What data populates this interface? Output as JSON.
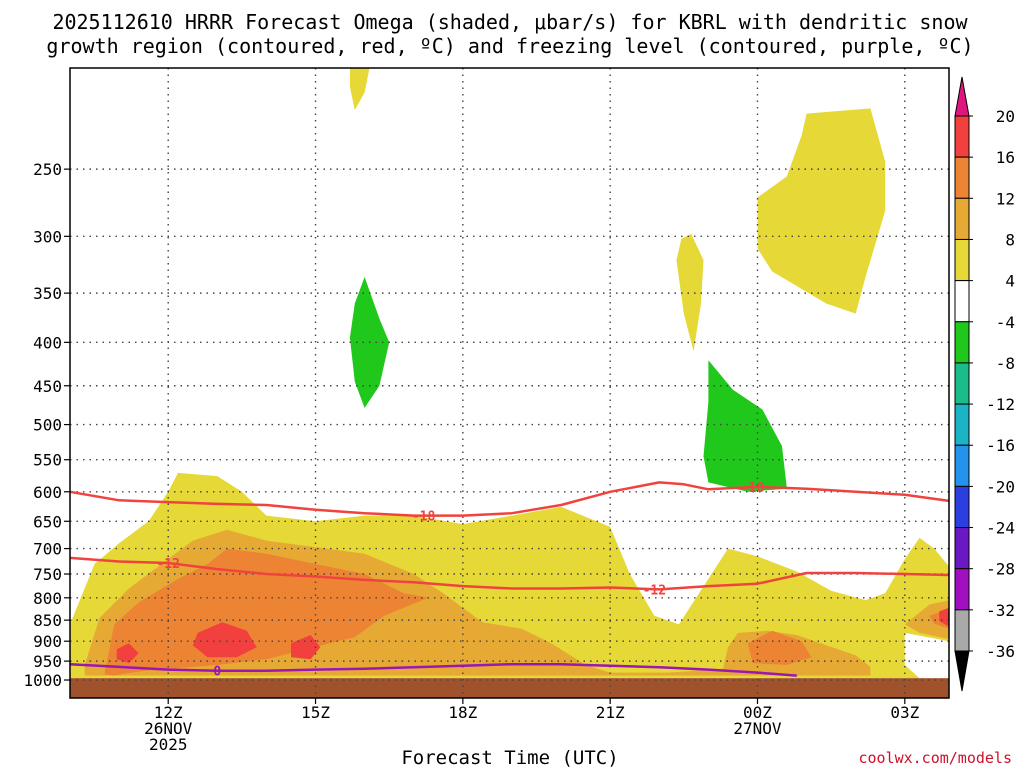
{
  "title": {
    "line1": "2025112610 HRRR Forecast Omega (shaded, μbar/s) for KBRL with dendritic snow",
    "line2": "growth region (contoured, red, ºC) and freezing level (contoured, purple, ºC)"
  },
  "credit": "coolwx.com/models",
  "chart_data": {
    "type": "heatmap",
    "title": "2025112610 HRRR Forecast Omega (shaded, μbar/s) for KBRL with dendritic snow growth region (contoured, red, ºC) and freezing level (contoured, purple, ºC)",
    "xlabel": "Forecast Time (UTC)",
    "ylabel": "",
    "x_range_hours_utc_26nov": [
      10,
      27.9
    ],
    "x_ticks": [
      {
        "hour": 12,
        "label": "12Z",
        "sub1": "26NOV",
        "sub2": "2025"
      },
      {
        "hour": 15,
        "label": "15Z",
        "sub1": "",
        "sub2": ""
      },
      {
        "hour": 18,
        "label": "18Z",
        "sub1": "",
        "sub2": ""
      },
      {
        "hour": 21,
        "label": "21Z",
        "sub1": "",
        "sub2": ""
      },
      {
        "hour": 24,
        "label": "00Z",
        "sub1": "27NOV",
        "sub2": ""
      },
      {
        "hour": 27,
        "label": "03Z",
        "sub1": "",
        "sub2": ""
      }
    ],
    "y_scale": "log",
    "y_range_hPa": [
      1050,
      190
    ],
    "y_ticks": [
      250,
      300,
      350,
      400,
      450,
      500,
      550,
      600,
      650,
      700,
      750,
      800,
      850,
      900,
      950,
      1000
    ],
    "grid": true,
    "colorbar": {
      "labels": [
        "20",
        "16",
        "12",
        "8",
        "4",
        "-4",
        "-8",
        "-12",
        "-16",
        "-20",
        "-24",
        "-28",
        "-32",
        "-36"
      ],
      "top_arrow_color": "#e0157e",
      "bottom_arrow_color": "#000000",
      "bands_top_to_bottom": [
        {
          "from": 16,
          "to": 20,
          "color": "#f2403e"
        },
        {
          "from": 12,
          "to": 16,
          "color": "#ec8434"
        },
        {
          "from": 8,
          "to": 12,
          "color": "#e6aa34"
        },
        {
          "from": 4,
          "to": 8,
          "color": "#e6d837"
        },
        {
          "from": -4,
          "to": 4,
          "color": "#ffffff"
        },
        {
          "from": -8,
          "to": -4,
          "color": "#1fc81b"
        },
        {
          "from": -12,
          "to": -8,
          "color": "#1abc8a"
        },
        {
          "from": -16,
          "to": -12,
          "color": "#1ab4c6"
        },
        {
          "from": -20,
          "to": -16,
          "color": "#2493ee"
        },
        {
          "from": -24,
          "to": -20,
          "color": "#2b3ee0"
        },
        {
          "from": -28,
          "to": -24,
          "color": "#6a17c4"
        },
        {
          "from": -32,
          "to": -28,
          "color": "#a10fc0"
        },
        {
          "from": -36,
          "to": -32,
          "color": "#a9a9a9"
        }
      ]
    },
    "ground": {
      "from_hPa": 995,
      "color": "#a0522d"
    },
    "regions": [
      {
        "name": "omega 4-8",
        "color": "#e6d837",
        "points": [
          [
            10.0,
            860
          ],
          [
            10.5,
            730
          ],
          [
            11.0,
            690
          ],
          [
            11.6,
            650
          ],
          [
            12.0,
            600
          ],
          [
            12.2,
            570
          ],
          [
            13.0,
            575
          ],
          [
            13.5,
            600
          ],
          [
            14.0,
            640
          ],
          [
            15.0,
            650
          ],
          [
            16.0,
            640
          ],
          [
            17.0,
            640
          ],
          [
            18.0,
            655
          ],
          [
            19.0,
            640
          ],
          [
            20.0,
            625
          ],
          [
            21.0,
            660
          ],
          [
            21.4,
            750
          ],
          [
            21.9,
            840
          ],
          [
            22.4,
            860
          ],
          [
            23.0,
            760
          ],
          [
            23.4,
            700
          ],
          [
            24.0,
            715
          ],
          [
            24.8,
            745
          ],
          [
            25.5,
            785
          ],
          [
            26.2,
            805
          ],
          [
            26.6,
            790
          ],
          [
            27.0,
            720
          ],
          [
            27.3,
            680
          ],
          [
            27.6,
            700
          ],
          [
            27.9,
            735
          ],
          [
            27.9,
            900
          ],
          [
            27.0,
            880
          ],
          [
            27.0,
            960
          ],
          [
            27.3,
            995
          ],
          [
            10.0,
            995
          ]
        ]
      },
      {
        "name": "omega 4-8",
        "color": "#e6d837",
        "points": [
          [
            15.7,
            190
          ],
          [
            16.1,
            190
          ],
          [
            16.0,
            203
          ],
          [
            15.8,
            213
          ],
          [
            15.7,
            200
          ]
        ]
      },
      {
        "name": "omega 4-8",
        "color": "#e6d837",
        "points": [
          [
            22.65,
            298
          ],
          [
            22.9,
            320
          ],
          [
            22.85,
            360
          ],
          [
            22.7,
            410
          ],
          [
            22.5,
            370
          ],
          [
            22.35,
            320
          ],
          [
            22.45,
            302
          ]
        ]
      },
      {
        "name": "omega 4-8",
        "color": "#e6d837",
        "points": [
          [
            24.0,
            270
          ],
          [
            24.6,
            255
          ],
          [
            24.9,
            228
          ],
          [
            25.0,
            215
          ],
          [
            26.3,
            212
          ],
          [
            26.6,
            245
          ],
          [
            26.6,
            280
          ],
          [
            26.2,
            335
          ],
          [
            26.0,
            370
          ],
          [
            25.4,
            360
          ],
          [
            24.3,
            330
          ],
          [
            24.0,
            310
          ]
        ]
      },
      {
        "name": "omega 8-12",
        "color": "#e6aa34",
        "points": [
          [
            10.3,
            960
          ],
          [
            10.6,
            845
          ],
          [
            11.2,
            780
          ],
          [
            12.0,
            720
          ],
          [
            12.5,
            685
          ],
          [
            13.2,
            665
          ],
          [
            14.0,
            685
          ],
          [
            14.8,
            695
          ],
          [
            16.0,
            710
          ],
          [
            17.0,
            750
          ],
          [
            17.6,
            790
          ],
          [
            18.4,
            855
          ],
          [
            19.2,
            870
          ],
          [
            19.8,
            905
          ],
          [
            20.5,
            960
          ],
          [
            21.0,
            980
          ],
          [
            22.2,
            980
          ],
          [
            23.3,
            970
          ],
          [
            23.4,
            915
          ],
          [
            23.6,
            880
          ],
          [
            24.2,
            875
          ],
          [
            24.8,
            885
          ],
          [
            25.4,
            910
          ],
          [
            26.0,
            935
          ],
          [
            26.3,
            965
          ],
          [
            26.3,
            988
          ],
          [
            10.3,
            988
          ]
        ]
      },
      {
        "name": "omega 8-12",
        "color": "#e6aa34",
        "points": [
          [
            27.0,
            860
          ],
          [
            27.5,
            815
          ],
          [
            27.9,
            805
          ],
          [
            27.9,
            895
          ],
          [
            27.3,
            880
          ]
        ]
      },
      {
        "name": "omega 12-16",
        "color": "#ec8434",
        "points": [
          [
            10.7,
            985
          ],
          [
            10.9,
            860
          ],
          [
            11.4,
            810
          ],
          [
            12.2,
            760
          ],
          [
            12.8,
            730
          ],
          [
            13.2,
            700
          ],
          [
            14.0,
            710
          ],
          [
            15.0,
            730
          ],
          [
            16.0,
            750
          ],
          [
            16.8,
            790
          ],
          [
            17.3,
            800
          ],
          [
            16.4,
            840
          ],
          [
            15.8,
            890
          ],
          [
            14.8,
            920
          ],
          [
            14.0,
            945
          ],
          [
            13.0,
            960
          ],
          [
            11.5,
            975
          ],
          [
            10.9,
            988
          ]
        ]
      },
      {
        "name": "omega 12-16",
        "color": "#ec8434",
        "points": [
          [
            23.8,
            905
          ],
          [
            24.3,
            875
          ],
          [
            24.9,
            900
          ],
          [
            25.1,
            940
          ],
          [
            24.6,
            960
          ],
          [
            23.9,
            955
          ]
        ]
      },
      {
        "name": "omega 12-16",
        "color": "#ec8434",
        "points": [
          [
            27.5,
            840
          ],
          [
            27.9,
            825
          ],
          [
            27.9,
            870
          ],
          [
            27.6,
            858
          ]
        ]
      },
      {
        "name": "omega 16-20",
        "color": "#f2403e",
        "points": [
          [
            12.6,
            880
          ],
          [
            13.1,
            855
          ],
          [
            13.6,
            875
          ],
          [
            13.8,
            915
          ],
          [
            13.4,
            940
          ],
          [
            12.8,
            940
          ],
          [
            12.5,
            910
          ]
        ]
      },
      {
        "name": "omega 16-20",
        "color": "#f2403e",
        "points": [
          [
            14.5,
            905
          ],
          [
            14.9,
            885
          ],
          [
            15.1,
            915
          ],
          [
            14.9,
            945
          ],
          [
            14.5,
            940
          ]
        ]
      },
      {
        "name": "omega 16-20",
        "color": "#f2403e",
        "points": [
          [
            10.95,
            920
          ],
          [
            11.2,
            905
          ],
          [
            11.4,
            930
          ],
          [
            11.2,
            955
          ],
          [
            10.95,
            945
          ]
        ]
      },
      {
        "name": "omega 16-20",
        "color": "#f2403e",
        "points": [
          [
            27.7,
            830
          ],
          [
            27.9,
            822
          ],
          [
            27.9,
            865
          ],
          [
            27.7,
            852
          ]
        ]
      },
      {
        "name": "omega -4 to -8",
        "color": "#1fc81b",
        "points": [
          [
            16.0,
            335
          ],
          [
            16.3,
            375
          ],
          [
            16.5,
            400
          ],
          [
            16.3,
            450
          ],
          [
            16.0,
            478
          ],
          [
            15.8,
            445
          ],
          [
            15.7,
            395
          ],
          [
            15.8,
            360
          ]
        ]
      },
      {
        "name": "omega -4 to -8",
        "color": "#1fc81b",
        "points": [
          [
            23.0,
            420
          ],
          [
            23.5,
            455
          ],
          [
            24.1,
            480
          ],
          [
            24.5,
            530
          ],
          [
            24.6,
            595
          ],
          [
            23.8,
            600
          ],
          [
            23.0,
            585
          ],
          [
            22.9,
            545
          ],
          [
            23.0,
            470
          ]
        ]
      }
    ],
    "contours": [
      {
        "name": "dendritic growth -18",
        "color": "#f0433f",
        "label": "-18",
        "label_at": [
          [
            17.2,
            640
          ],
          [
            23.9,
            592
          ]
        ],
        "points": [
          [
            10.0,
            600
          ],
          [
            11.0,
            614
          ],
          [
            12.0,
            617
          ],
          [
            13.0,
            620
          ],
          [
            14.0,
            622
          ],
          [
            15.0,
            630
          ],
          [
            16.0,
            636
          ],
          [
            17.0,
            640
          ],
          [
            18.0,
            640
          ],
          [
            19.0,
            636
          ],
          [
            20.0,
            622
          ],
          [
            21.0,
            600
          ],
          [
            22.0,
            585
          ],
          [
            22.5,
            588
          ],
          [
            23.0,
            596
          ],
          [
            24.0,
            592
          ],
          [
            25.0,
            595
          ],
          [
            26.0,
            600
          ],
          [
            27.0,
            605
          ],
          [
            27.9,
            615
          ]
        ]
      },
      {
        "name": "dendritic growth -12",
        "color": "#f0433f",
        "label": "-12",
        "label_at": [
          [
            12.0,
            728
          ],
          [
            21.9,
            782
          ]
        ],
        "points": [
          [
            10.0,
            718
          ],
          [
            11.0,
            725
          ],
          [
            12.0,
            728
          ],
          [
            13.0,
            740
          ],
          [
            14.0,
            750
          ],
          [
            15.0,
            755
          ],
          [
            16.0,
            762
          ],
          [
            17.0,
            767
          ],
          [
            18.0,
            775
          ],
          [
            19.0,
            780
          ],
          [
            20.0,
            780
          ],
          [
            21.0,
            778
          ],
          [
            22.0,
            782
          ],
          [
            23.0,
            775
          ],
          [
            24.0,
            770
          ],
          [
            25.0,
            748
          ],
          [
            26.0,
            748
          ],
          [
            27.0,
            750
          ],
          [
            27.9,
            752
          ]
        ]
      },
      {
        "name": "freezing level 0",
        "color": "#9b16b3",
        "label": "0",
        "label_at": [
          [
            13.0,
            975
          ]
        ],
        "points": [
          [
            10.0,
            958
          ],
          [
            11.0,
            965
          ],
          [
            12.0,
            972
          ],
          [
            13.0,
            975
          ],
          [
            14.0,
            975
          ],
          [
            15.0,
            972
          ],
          [
            16.0,
            970
          ],
          [
            17.0,
            966
          ],
          [
            18.0,
            962
          ],
          [
            19.0,
            958
          ],
          [
            20.0,
            958
          ],
          [
            21.0,
            962
          ],
          [
            22.0,
            966
          ],
          [
            23.0,
            972
          ],
          [
            24.0,
            980
          ],
          [
            24.8,
            988
          ]
        ]
      }
    ]
  }
}
